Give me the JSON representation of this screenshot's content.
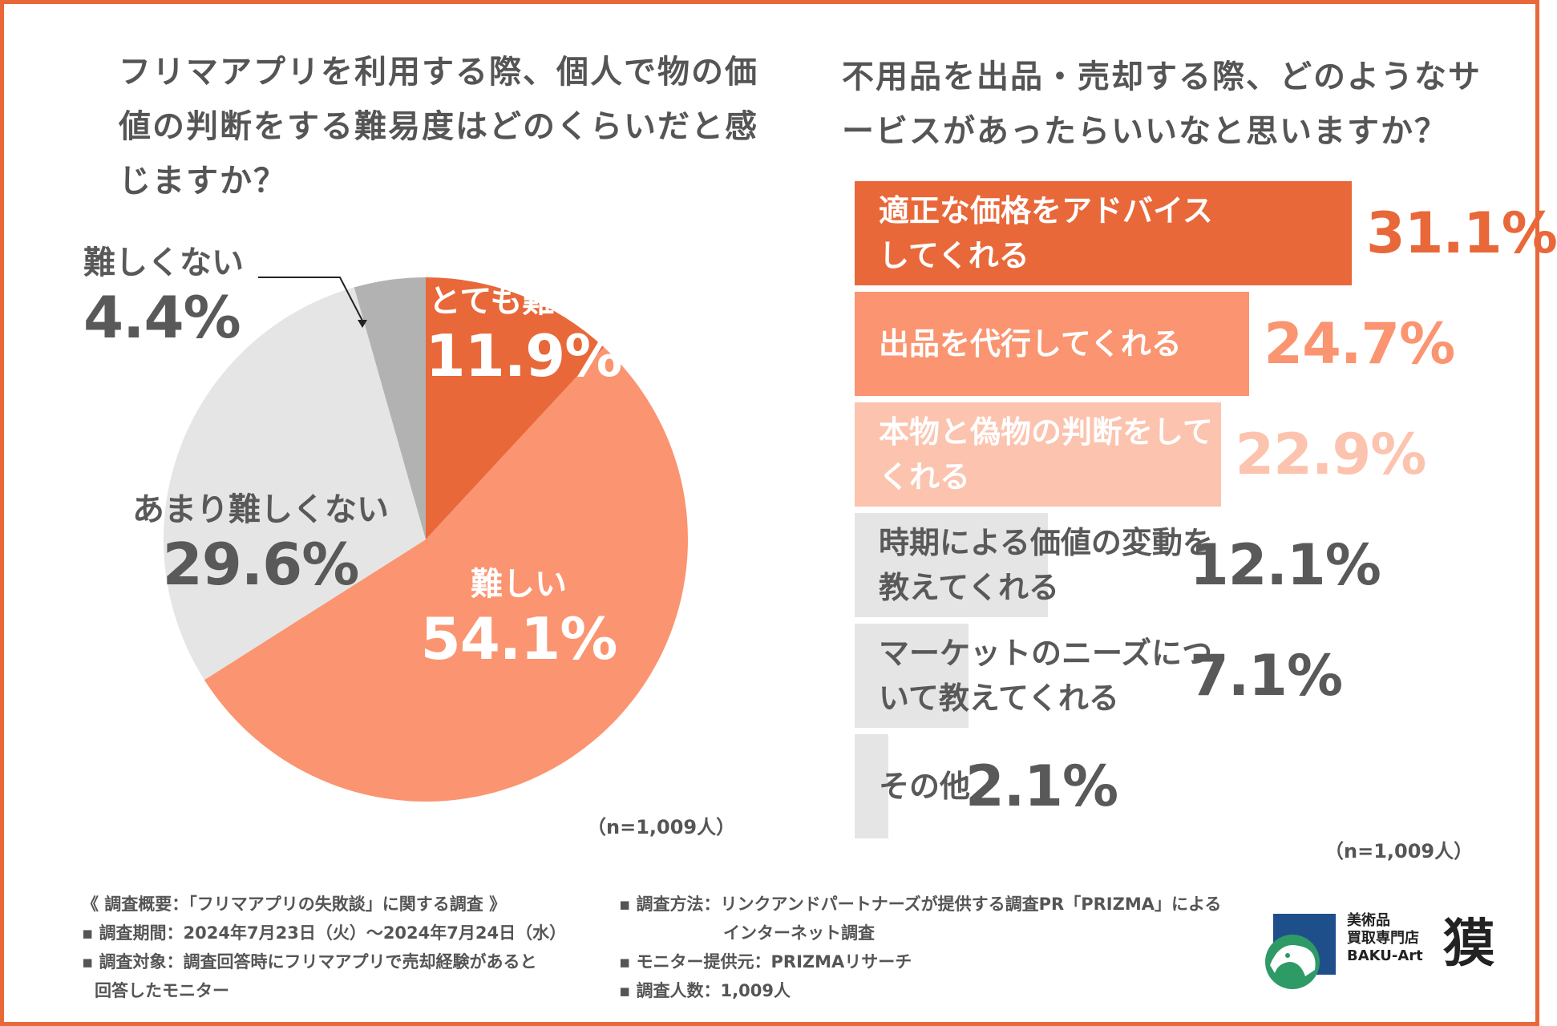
{
  "left_title": "フリマアプリを利用する際、個人で物の価値の判断をする難易度はどのくらいだと感じますか？",
  "right_title": "不用品を出品・売却する際、どのようなサービスがあったらいいなと思いますか？",
  "left_n": "（n=1,009人）",
  "right_n": "（n=1,009人）",
  "chart_data": [
    {
      "type": "pie",
      "title": "フリマアプリを利用する際、個人で物の価値の判断をする難易度はどのくらいだと感じますか？",
      "slices": [
        {
          "label": "とても難しい",
          "value": 11.9,
          "display": "11.9%",
          "color": "#e8683a"
        },
        {
          "label": "難しい",
          "value": 54.1,
          "display": "54.1%",
          "color": "#fb9470"
        },
        {
          "label": "あまり難しくない",
          "value": 29.6,
          "display": "29.6%",
          "color": "#e5e5e5"
        },
        {
          "label": "難しくない",
          "value": 4.4,
          "display": "4.4%",
          "color": "#b2b2b2"
        }
      ]
    },
    {
      "type": "bar",
      "orientation": "horizontal",
      "title": "不用品を出品・売却する際、どのようなサービスがあったらいいなと思いますか？",
      "bars": [
        {
          "label": "適正な価格をアドバイスしてくれる",
          "value": 31.1,
          "display": "31.1%",
          "color": "#e8683a",
          "label_color": "#ffffff",
          "pct_color": "#e8683a"
        },
        {
          "label": "出品を代行してくれる",
          "value": 24.7,
          "display": "24.7%",
          "color": "#fb9470",
          "label_color": "#ffffff",
          "pct_color": "#fb9470"
        },
        {
          "label": "本物と偽物の判断をしてくれる",
          "value": 22.9,
          "display": "22.9%",
          "color": "#fcc3ae",
          "label_color": "#ffffff",
          "pct_color": "#fcc3ae"
        },
        {
          "label": "時期による価値の変動を教えてくれる",
          "value": 12.1,
          "display": "12.1%",
          "color": "#e5e5e5",
          "label_color": "#595959",
          "pct_color": "#595959"
        },
        {
          "label": "マーケットのニーズについて教えてくれる",
          "value": 7.1,
          "display": "7.1%",
          "color": "#e5e5e5",
          "label_color": "#595959",
          "pct_color": "#595959"
        },
        {
          "label": "その他",
          "value": 2.1,
          "display": "2.1%",
          "color": "#e5e5e5",
          "label_color": "#595959",
          "pct_color": "#595959"
        }
      ]
    }
  ],
  "footer": {
    "overview": "《 調査概要：「フリマアプリの失敗談」に関する調査 》",
    "period": "▪ 調査期間：2024年7月23日（火）～2024年7月24日（水）",
    "target_1": "▪ 調査対象：調査回答時にフリマアプリで売却経験があると",
    "target_2": "回答したモニター",
    "method_1": "▪ 調査方法：リンクアンドパートナーズが提供する調査PR「PRIZMA」による",
    "method_2": "インターネット調査",
    "monitor": "▪ モニター提供元：PRIZMAリサーチ",
    "count": "▪ 調査人数：1,009人"
  },
  "logo": {
    "line1": "美術品",
    "line2": "買取専門店",
    "line3": "BAKU-Art",
    "kanji": "獏"
  }
}
